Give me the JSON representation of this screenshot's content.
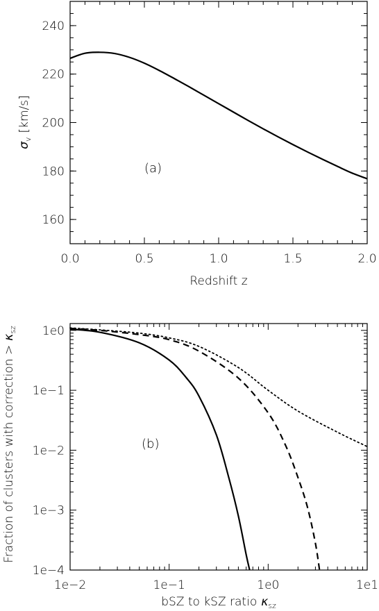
{
  "chart_data": [
    {
      "type": "line",
      "panel": "a",
      "annotation": "(a)",
      "xlabel": "Redshift z",
      "ylabel_symbol": "σ",
      "ylabel_sub": "v",
      "ylabel_unit": "[km/s]",
      "xlim": [
        0.0,
        2.0
      ],
      "ylim": [
        150,
        250
      ],
      "xticks": [
        0.0,
        0.5,
        1.0,
        1.5,
        2.0
      ],
      "xtick_labels": [
        "0.0",
        "0.5",
        "1.0",
        "1.5",
        "2.0"
      ],
      "yticks": [
        160,
        180,
        200,
        220,
        240
      ],
      "ytick_labels": [
        "160",
        "180",
        "200",
        "220",
        "240"
      ],
      "grid": false,
      "series": [
        {
          "style": "solid",
          "x": [
            0.0,
            0.1,
            0.2,
            0.3,
            0.4,
            0.5,
            0.6,
            0.7,
            0.8,
            0.9,
            1.0,
            1.1,
            1.2,
            1.3,
            1.4,
            1.5,
            1.6,
            1.7,
            1.8,
            1.9,
            2.0
          ],
          "y": [
            226.5,
            228.6,
            229.0,
            228.5,
            226.9,
            224.5,
            221.5,
            218.2,
            214.8,
            211.3,
            207.8,
            204.3,
            200.8,
            197.4,
            194.1,
            190.9,
            187.8,
            184.8,
            181.9,
            179.1,
            176.8
          ]
        }
      ]
    },
    {
      "type": "line",
      "panel": "b",
      "annotation": "(b)",
      "xlabel_text": "bSZ to kSZ ratio",
      "xlabel_symbol": "κ",
      "xlabel_sub": "sz",
      "ylabel_text": "Fraction of clusters with correction >",
      "ylabel_symbol": "κ",
      "ylabel_sub": "sz",
      "xscale": "log",
      "yscale": "log",
      "xlim": [
        0.01,
        10
      ],
      "ylim": [
        0.0001,
        1.3
      ],
      "xticks": [
        0.01,
        0.1,
        1,
        10
      ],
      "xtick_labels": [
        "1e−2",
        "1e−1",
        "1e0",
        "1e1"
      ],
      "yticks": [
        0.0001,
        0.001,
        0.01,
        0.1,
        1
      ],
      "ytick_labels": [
        "1e−4",
        "1e−3",
        "1e−2",
        "1e−1",
        "1e0"
      ],
      "grid": false,
      "series": [
        {
          "style": "solid",
          "x": [
            0.01,
            0.02,
            0.05,
            0.1,
            0.15,
            0.2,
            0.3,
            0.4,
            0.5,
            0.6,
            0.65
          ],
          "y": [
            1.05,
            0.93,
            0.62,
            0.32,
            0.16,
            0.08,
            0.018,
            0.0035,
            0.0008,
            0.00018,
            0.0001
          ]
        },
        {
          "style": "dashed",
          "x": [
            0.01,
            0.02,
            0.05,
            0.1,
            0.2,
            0.5,
            1.0,
            1.5,
            2.0,
            2.5,
            3.0,
            3.3
          ],
          "y": [
            1.08,
            1.0,
            0.85,
            0.7,
            0.45,
            0.16,
            0.042,
            0.012,
            0.0035,
            0.0011,
            0.00028,
            0.0001
          ]
        },
        {
          "style": "dotted",
          "x": [
            0.01,
            0.02,
            0.05,
            0.1,
            0.2,
            0.5,
            1.0,
            2.0,
            5.0,
            10.0
          ],
          "y": [
            1.1,
            1.02,
            0.9,
            0.75,
            0.54,
            0.24,
            0.1,
            0.045,
            0.02,
            0.0115
          ]
        }
      ]
    }
  ]
}
